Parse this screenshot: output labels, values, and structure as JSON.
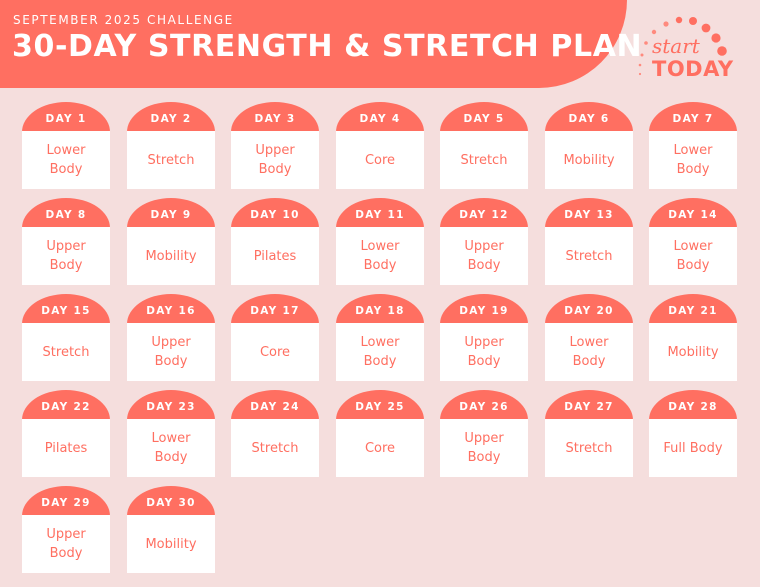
{
  "header": {
    "subtitle": "SEPTEMBER 2025 CHALLENGE",
    "title": "30-DAY STRENGTH & STRETCH PLAN"
  },
  "logo": {
    "word1": "start",
    "word2": "TODAY"
  },
  "colors": {
    "accent": "#ff6f61",
    "background": "#f5dedd",
    "card": "#ffffff"
  },
  "days": [
    {
      "label": "DAY 1",
      "activity": "Lower Body"
    },
    {
      "label": "DAY 2",
      "activity": "Stretch"
    },
    {
      "label": "DAY 3",
      "activity": "Upper Body"
    },
    {
      "label": "DAY 4",
      "activity": "Core"
    },
    {
      "label": "DAY 5",
      "activity": "Stretch"
    },
    {
      "label": "DAY 6",
      "activity": "Mobility"
    },
    {
      "label": "DAY 7",
      "activity": "Lower Body"
    },
    {
      "label": "DAY 8",
      "activity": "Upper Body"
    },
    {
      "label": "DAY 9",
      "activity": "Mobility"
    },
    {
      "label": "DAY 10",
      "activity": "Pilates"
    },
    {
      "label": "DAY 11",
      "activity": "Lower Body"
    },
    {
      "label": "DAY 12",
      "activity": "Upper Body"
    },
    {
      "label": "DAY 13",
      "activity": "Stretch"
    },
    {
      "label": "DAY 14",
      "activity": "Lower Body"
    },
    {
      "label": "DAY 15",
      "activity": "Stretch"
    },
    {
      "label": "DAY 16",
      "activity": "Upper Body"
    },
    {
      "label": "DAY 17",
      "activity": "Core"
    },
    {
      "label": "DAY 18",
      "activity": "Lower Body"
    },
    {
      "label": "DAY 19",
      "activity": "Upper Body"
    },
    {
      "label": "DAY 20",
      "activity": "Lower Body"
    },
    {
      "label": "DAY 21",
      "activity": "Mobility"
    },
    {
      "label": "DAY 22",
      "activity": "Pilates"
    },
    {
      "label": "DAY 23",
      "activity": "Lower Body"
    },
    {
      "label": "DAY 24",
      "activity": "Stretch"
    },
    {
      "label": "DAY 25",
      "activity": "Core"
    },
    {
      "label": "DAY 26",
      "activity": "Upper Body"
    },
    {
      "label": "DAY 27",
      "activity": "Stretch"
    },
    {
      "label": "DAY 28",
      "activity": "Full Body"
    },
    {
      "label": "DAY 29",
      "activity": "Upper Body"
    },
    {
      "label": "DAY 30",
      "activity": "Mobility"
    }
  ]
}
